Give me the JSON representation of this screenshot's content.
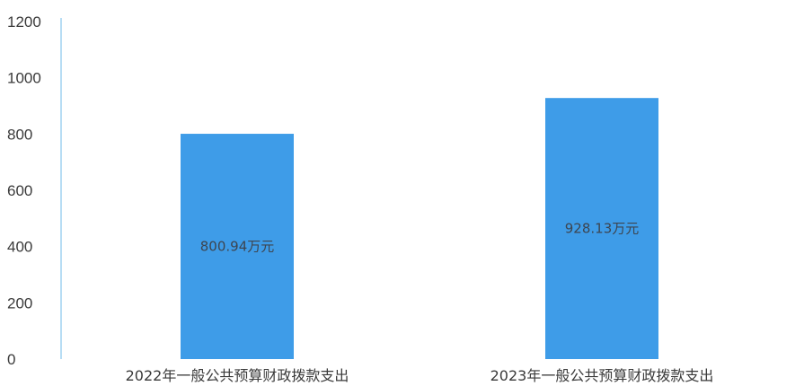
{
  "chart_data": {
    "type": "bar",
    "categories": [
      "2022年一般公共预算财政拨款支出",
      "2023年一般公共预算财政拨款支出"
    ],
    "values": [
      800.94,
      928.13
    ],
    "data_labels": [
      "800.94万元",
      "928.13万元"
    ],
    "yticks": [
      "0",
      "200",
      "400",
      "600",
      "800",
      "1000",
      "1200"
    ],
    "ylim": [
      0,
      1200
    ],
    "grid": false,
    "legend": "none",
    "colors": {
      "bar": "#3e9ce8",
      "axis": "#9fd2f0"
    }
  }
}
